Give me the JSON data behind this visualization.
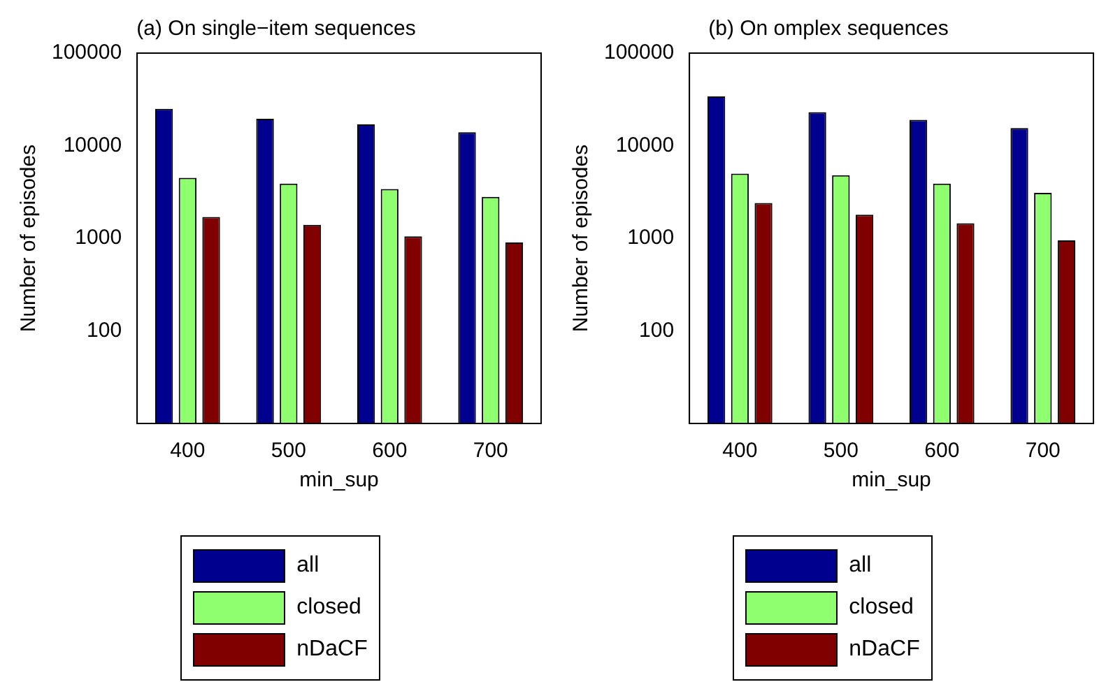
{
  "chart_data": [
    {
      "type": "bar",
      "title": "(a) On single−item sequences",
      "xlabel": "min_sup",
      "ylabel": "Number of episodes",
      "categories": [
        "400",
        "500",
        "600",
        "700"
      ],
      "series": [
        {
          "name": "all",
          "color": "#00008f",
          "values": [
            25000,
            19500,
            17000,
            14000
          ]
        },
        {
          "name": "closed",
          "color": "#8fff70",
          "values": [
            4500,
            3900,
            3400,
            2800
          ]
        },
        {
          "name": "nDaCF",
          "color": "#800000",
          "values": [
            1700,
            1400,
            1050,
            900
          ]
        }
      ],
      "log": "y",
      "ylim": [
        10,
        100000
      ],
      "yticks": [
        100,
        1000,
        10000,
        100000
      ],
      "grid": false,
      "legend": "bottom"
    },
    {
      "type": "bar",
      "title": "(b) On omplex sequences",
      "xlabel": "min_sup",
      "ylabel": "Number of episodes",
      "categories": [
        "400",
        "500",
        "600",
        "700"
      ],
      "series": [
        {
          "name": "all",
          "color": "#00008f",
          "values": [
            34000,
            23000,
            19000,
            15500
          ]
        },
        {
          "name": "closed",
          "color": "#8fff70",
          "values": [
            5000,
            4800,
            3900,
            3100
          ]
        },
        {
          "name": "nDaCF",
          "color": "#800000",
          "values": [
            2400,
            1800,
            1450,
            950
          ]
        }
      ],
      "log": "y",
      "ylim": [
        10,
        100000
      ],
      "yticks": [
        100,
        1000,
        10000,
        100000
      ],
      "grid": false,
      "legend": "bottom"
    }
  ]
}
